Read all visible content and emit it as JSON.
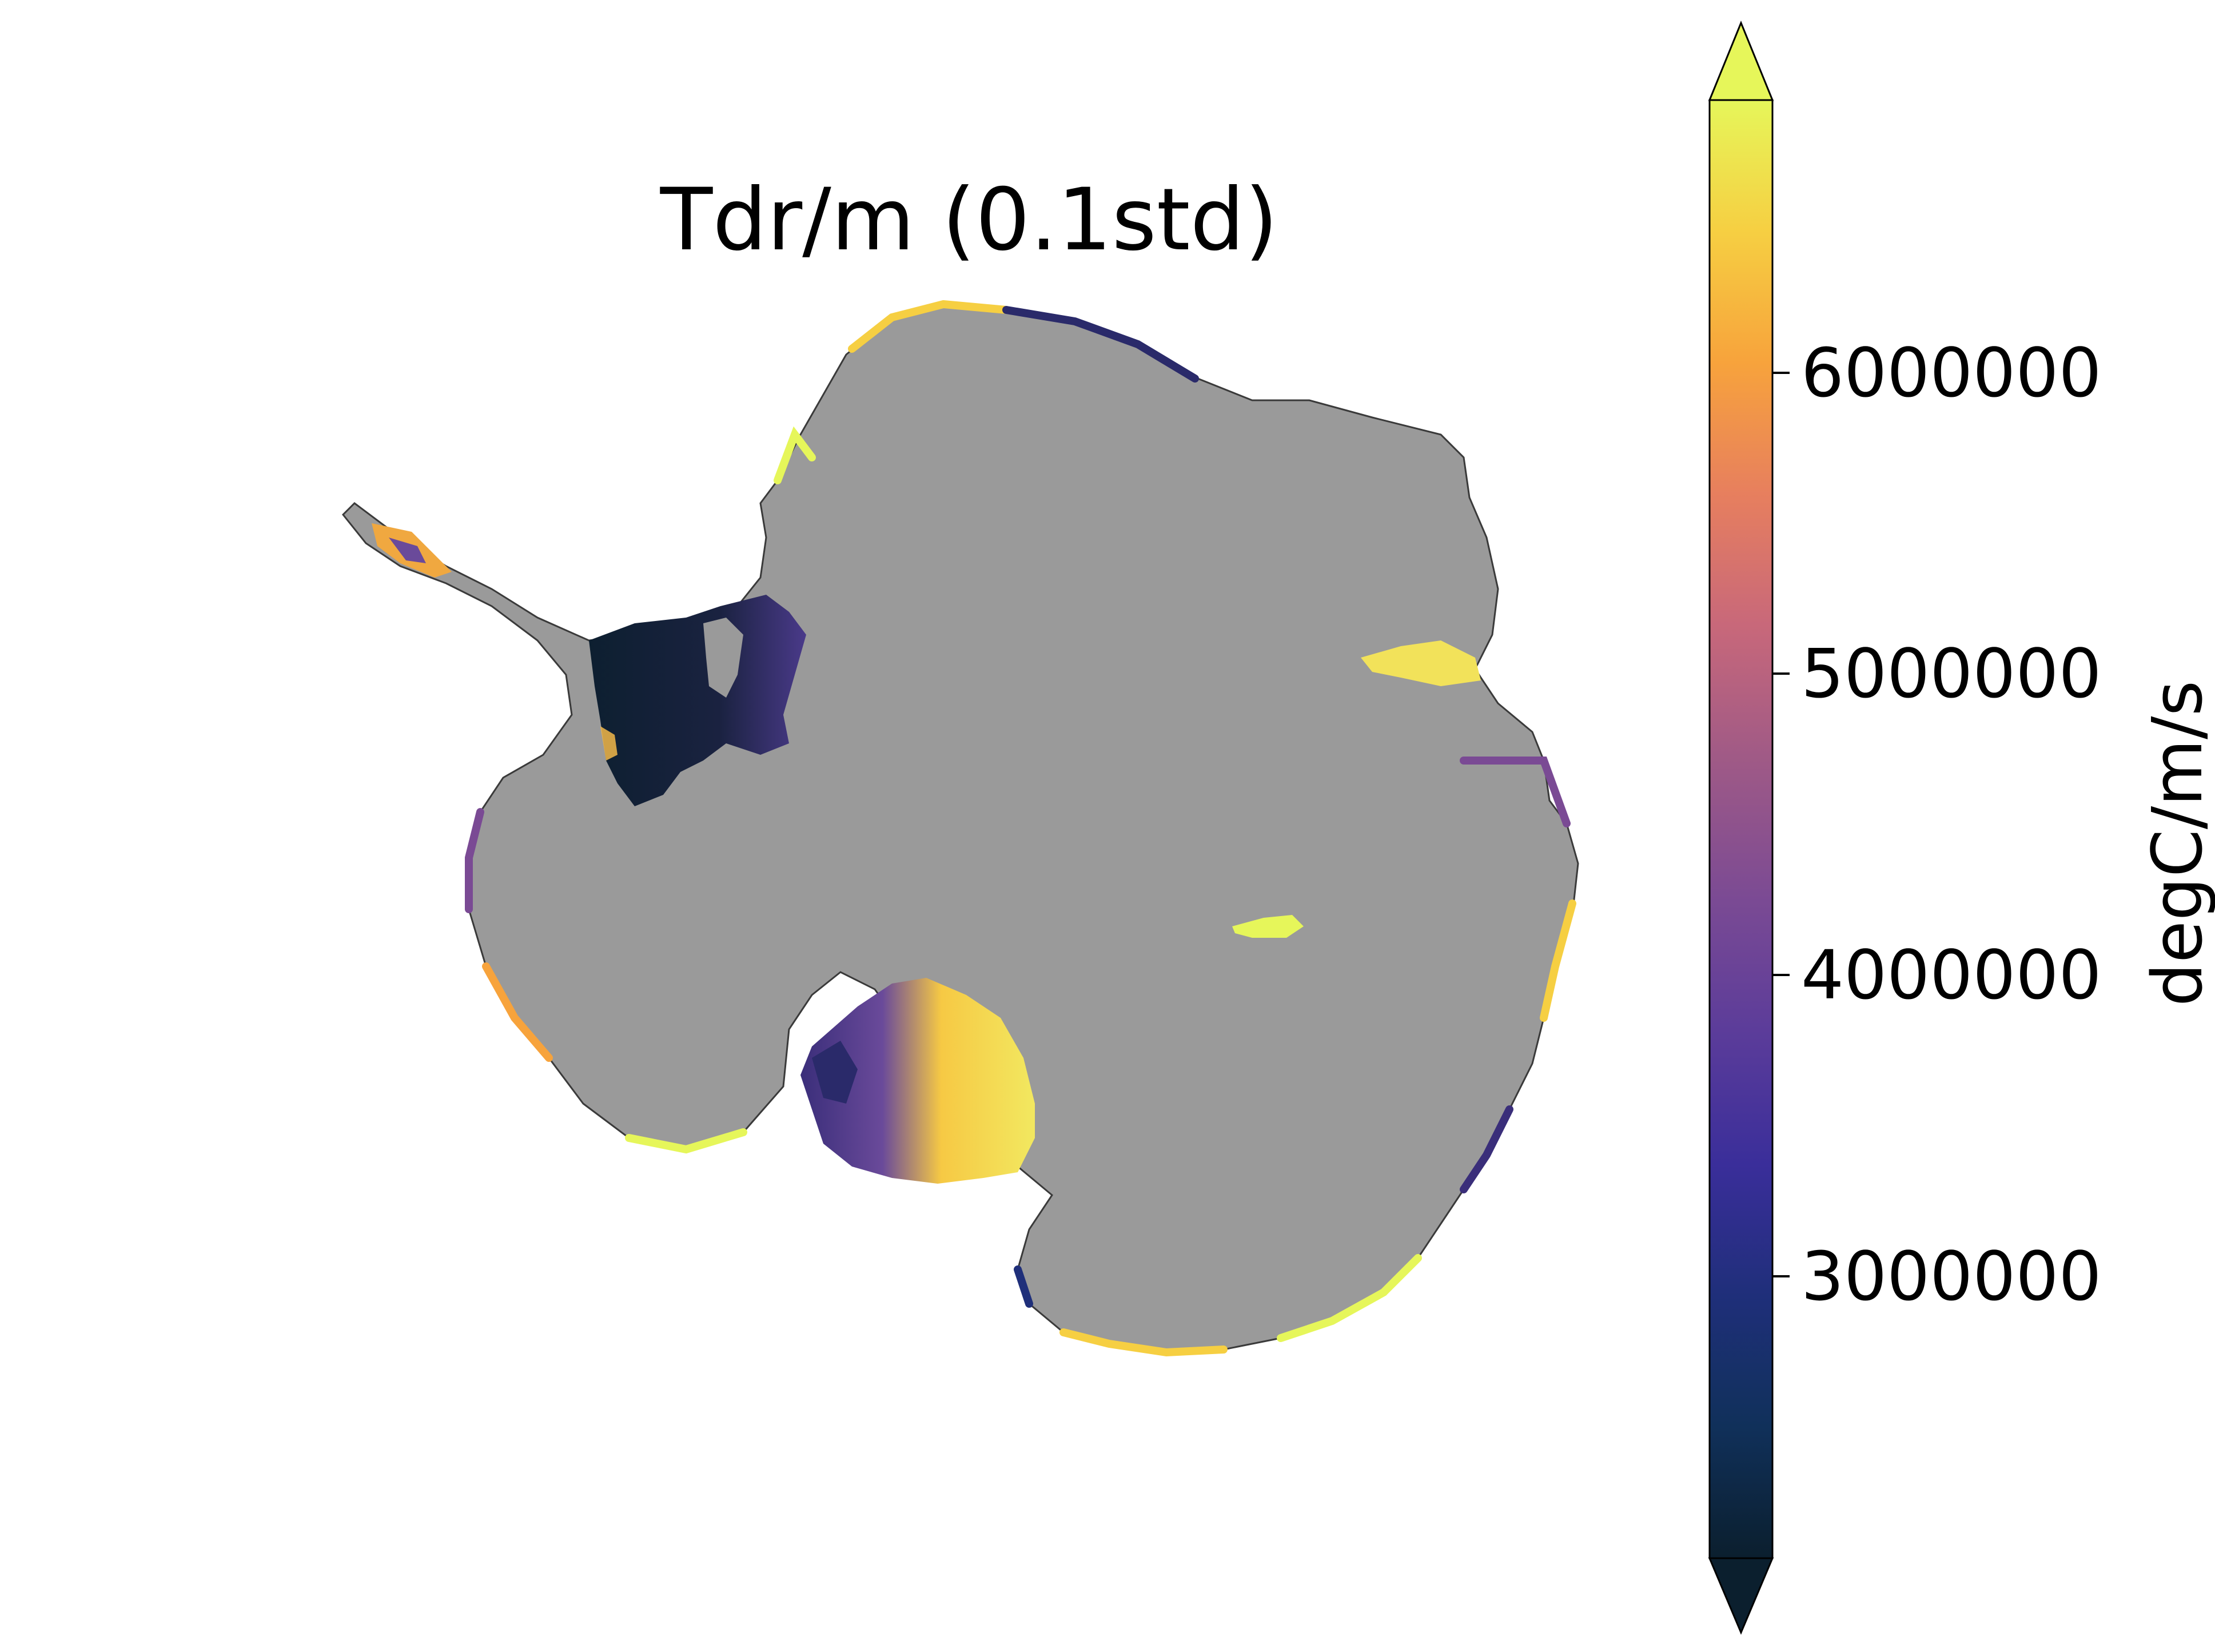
{
  "title": "Tdr/m (0.1std)",
  "map": {
    "region": "Antarctica",
    "grounded_ice_color": "#9a9a9a",
    "background_color": "#ffffff"
  },
  "colorbar": {
    "label": "degC/m/s",
    "colormap": "thermal",
    "extend": "both",
    "orientation": "vertical",
    "vmin": 2150000,
    "vmax": 6900000,
    "ticks": [
      3000000,
      4000000,
      5000000,
      6000000
    ],
    "tick_labels": [
      "3000000",
      "4000000",
      "5000000",
      "6000000"
    ],
    "stops": [
      "#0b1f2e",
      "#10305a",
      "#1f2f7a",
      "#3a2e9a",
      "#5b3c9a",
      "#7a4a94",
      "#a05a86",
      "#c8687a",
      "#e77f5e",
      "#f7a33c",
      "#f6cf42",
      "#e6f65a"
    ]
  }
}
